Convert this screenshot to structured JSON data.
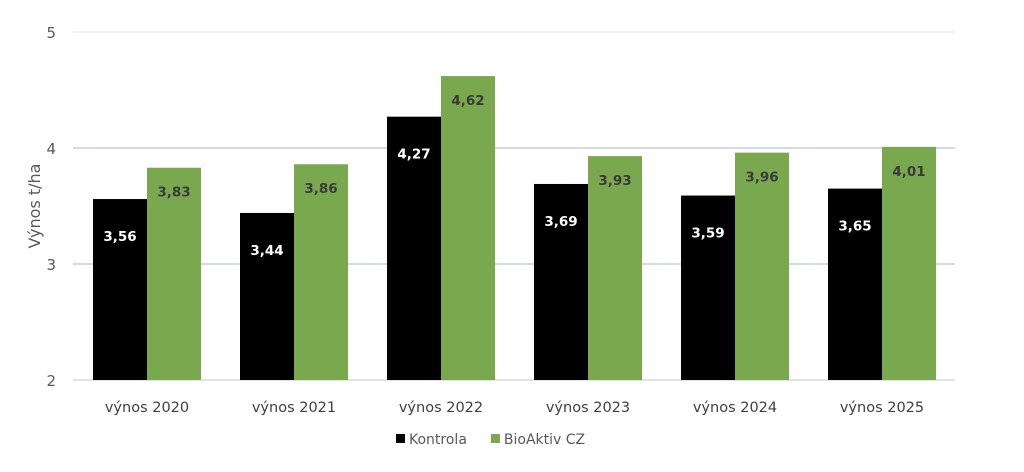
{
  "chart_data": {
    "type": "bar",
    "title": "",
    "xlabel": "",
    "ylabel": "Výnos t/ha",
    "ylim": [
      2,
      5
    ],
    "yticks": [
      "2",
      "3",
      "4",
      "5"
    ],
    "grid": true,
    "legend_position": "bottom",
    "categories": [
      "výnos 2020",
      "výnos 2021",
      "výnos 2022",
      "výnos 2023",
      "výnos 2024",
      "výnos 2025"
    ],
    "series": [
      {
        "name": "Kontrola",
        "color": "#000000",
        "label_color": "#ffffff",
        "values": [
          3.56,
          3.44,
          4.27,
          3.69,
          3.59,
          3.65
        ],
        "labels": [
          "3,56",
          "3,44",
          "4,27",
          "3,69",
          "3,59",
          "3,65"
        ]
      },
      {
        "name": "BioAktiv CZ",
        "color": "#7aa84f",
        "label_color": "#3a3a3a",
        "values": [
          3.83,
          3.86,
          4.62,
          3.93,
          3.96,
          4.01
        ],
        "labels": [
          "3,83",
          "3,86",
          "4,62",
          "3,93",
          "3,96",
          "4,01"
        ]
      }
    ]
  }
}
